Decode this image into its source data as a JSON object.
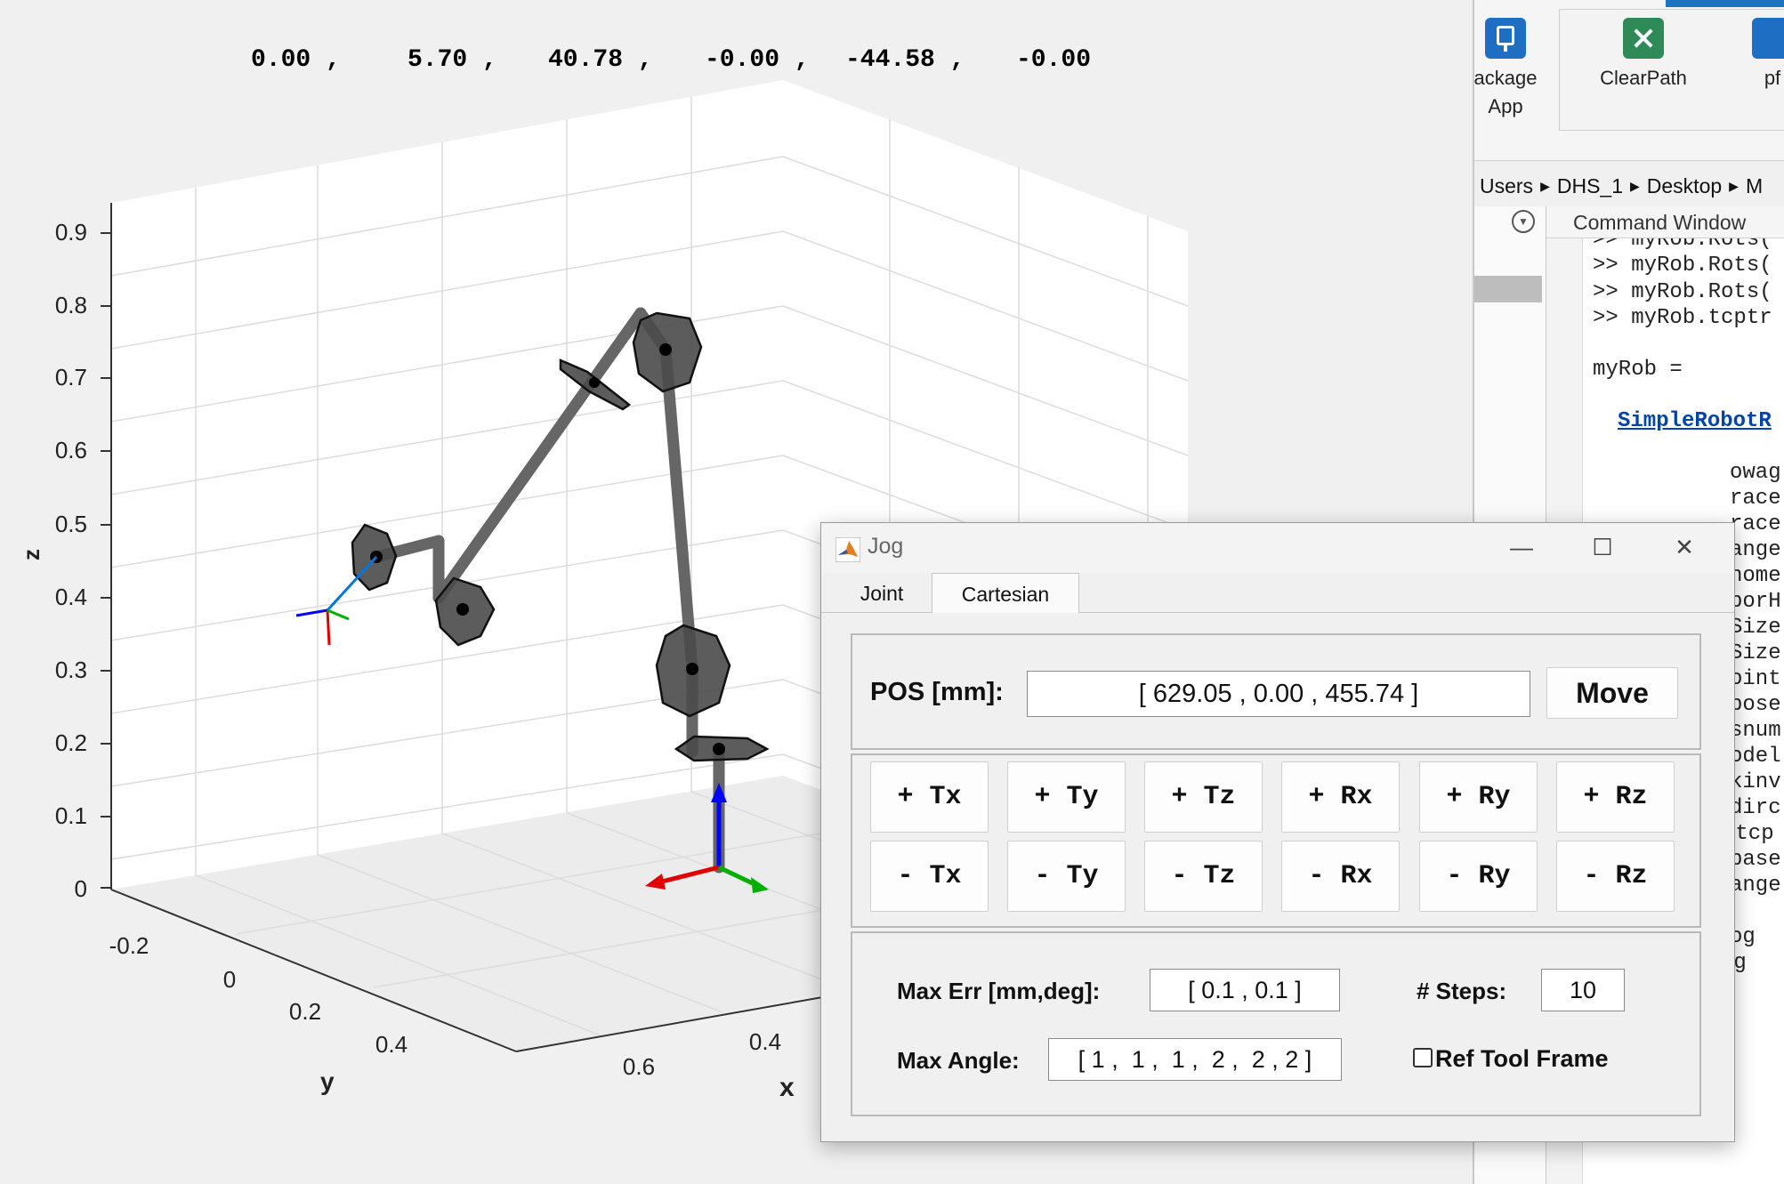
{
  "figure": {
    "joint_values": [
      "0.00 ,",
      "5.70 ,",
      "40.78 ,",
      "-0.00 ,",
      "-44.58 ,",
      "-0.00"
    ],
    "axes": {
      "z_label": "z",
      "y_label": "y",
      "x_label": "x",
      "z_ticks": [
        "0.9",
        "0.8",
        "0.7",
        "0.6",
        "0.5",
        "0.4",
        "0.3",
        "0.2",
        "0.1",
        "0"
      ],
      "y_ticks": [
        "-0.2",
        "0",
        "0.2",
        "0.4"
      ],
      "x_ticks": [
        "0.6",
        "0.4"
      ]
    },
    "colors": {
      "link": "#666666",
      "joint": "#4a4a4a",
      "axis_x": "#e00000",
      "axis_y": "#00b000",
      "axis_z": "#0000ff"
    }
  },
  "desktop": {
    "ribbon": {
      "apps": [
        {
          "label_line1": "ackage",
          "label_line2": "App",
          "icon": "package-app-icon"
        },
        {
          "label_line1": "ClearPath",
          "label_line2": "",
          "icon": "clearpath-icon"
        },
        {
          "label_line1": "pf",
          "label_line2": "",
          "icon": "app-icon"
        }
      ]
    },
    "address_bar": [
      "Users",
      "DHS_1",
      "Desktop",
      "M"
    ],
    "command_window": {
      "title": "Command Window",
      "lines": [
        ">> myRob.Rots(",
        ">> myRob.Rots(",
        ">> myRob.Rots(",
        ">> myRob.tcptr",
        "",
        "myRob =",
        "",
        "SimpleRobotR",
        "",
        "owag",
        "race",
        "race",
        "ange",
        "home",
        "borH",
        "Size",
        "Size",
        "oint",
        "pose",
        "snum",
        "odel",
        "kinv",
        "dirc",
        " tcp",
        "base",
        "ange",
        "",
        "og",
        ">> myRob.Jog"
      ]
    }
  },
  "jog_window": {
    "title": "Jog",
    "tabs": [
      "Joint",
      "Cartesian"
    ],
    "active_tab": "Cartesian",
    "pos_label": "POS [mm]:",
    "pos_value": "[ 629.05 , 0.00 , 455.74 ]",
    "move_label": "Move",
    "plus_buttons": [
      "+ Tx",
      "+ Ty",
      "+ Tz",
      "+ Rx",
      "+ Ry",
      "+ Rz"
    ],
    "minus_buttons": [
      "- Tx",
      "- Ty",
      "- Tz",
      "- Rx",
      "- Ry",
      "- Rz"
    ],
    "max_err_label": "Max Err [mm,deg]:",
    "max_err_value": "[ 0.1 , 0.1 ]",
    "steps_label": "# Steps:",
    "steps_value": "10",
    "max_angle_label": "Max Angle:",
    "max_angle_value": "[ 1 ,  1 ,  1 ,  2 ,  2 , 2 ]",
    "ref_tool_frame_label": "Ref Tool Frame",
    "ref_tool_frame_checked": false
  }
}
